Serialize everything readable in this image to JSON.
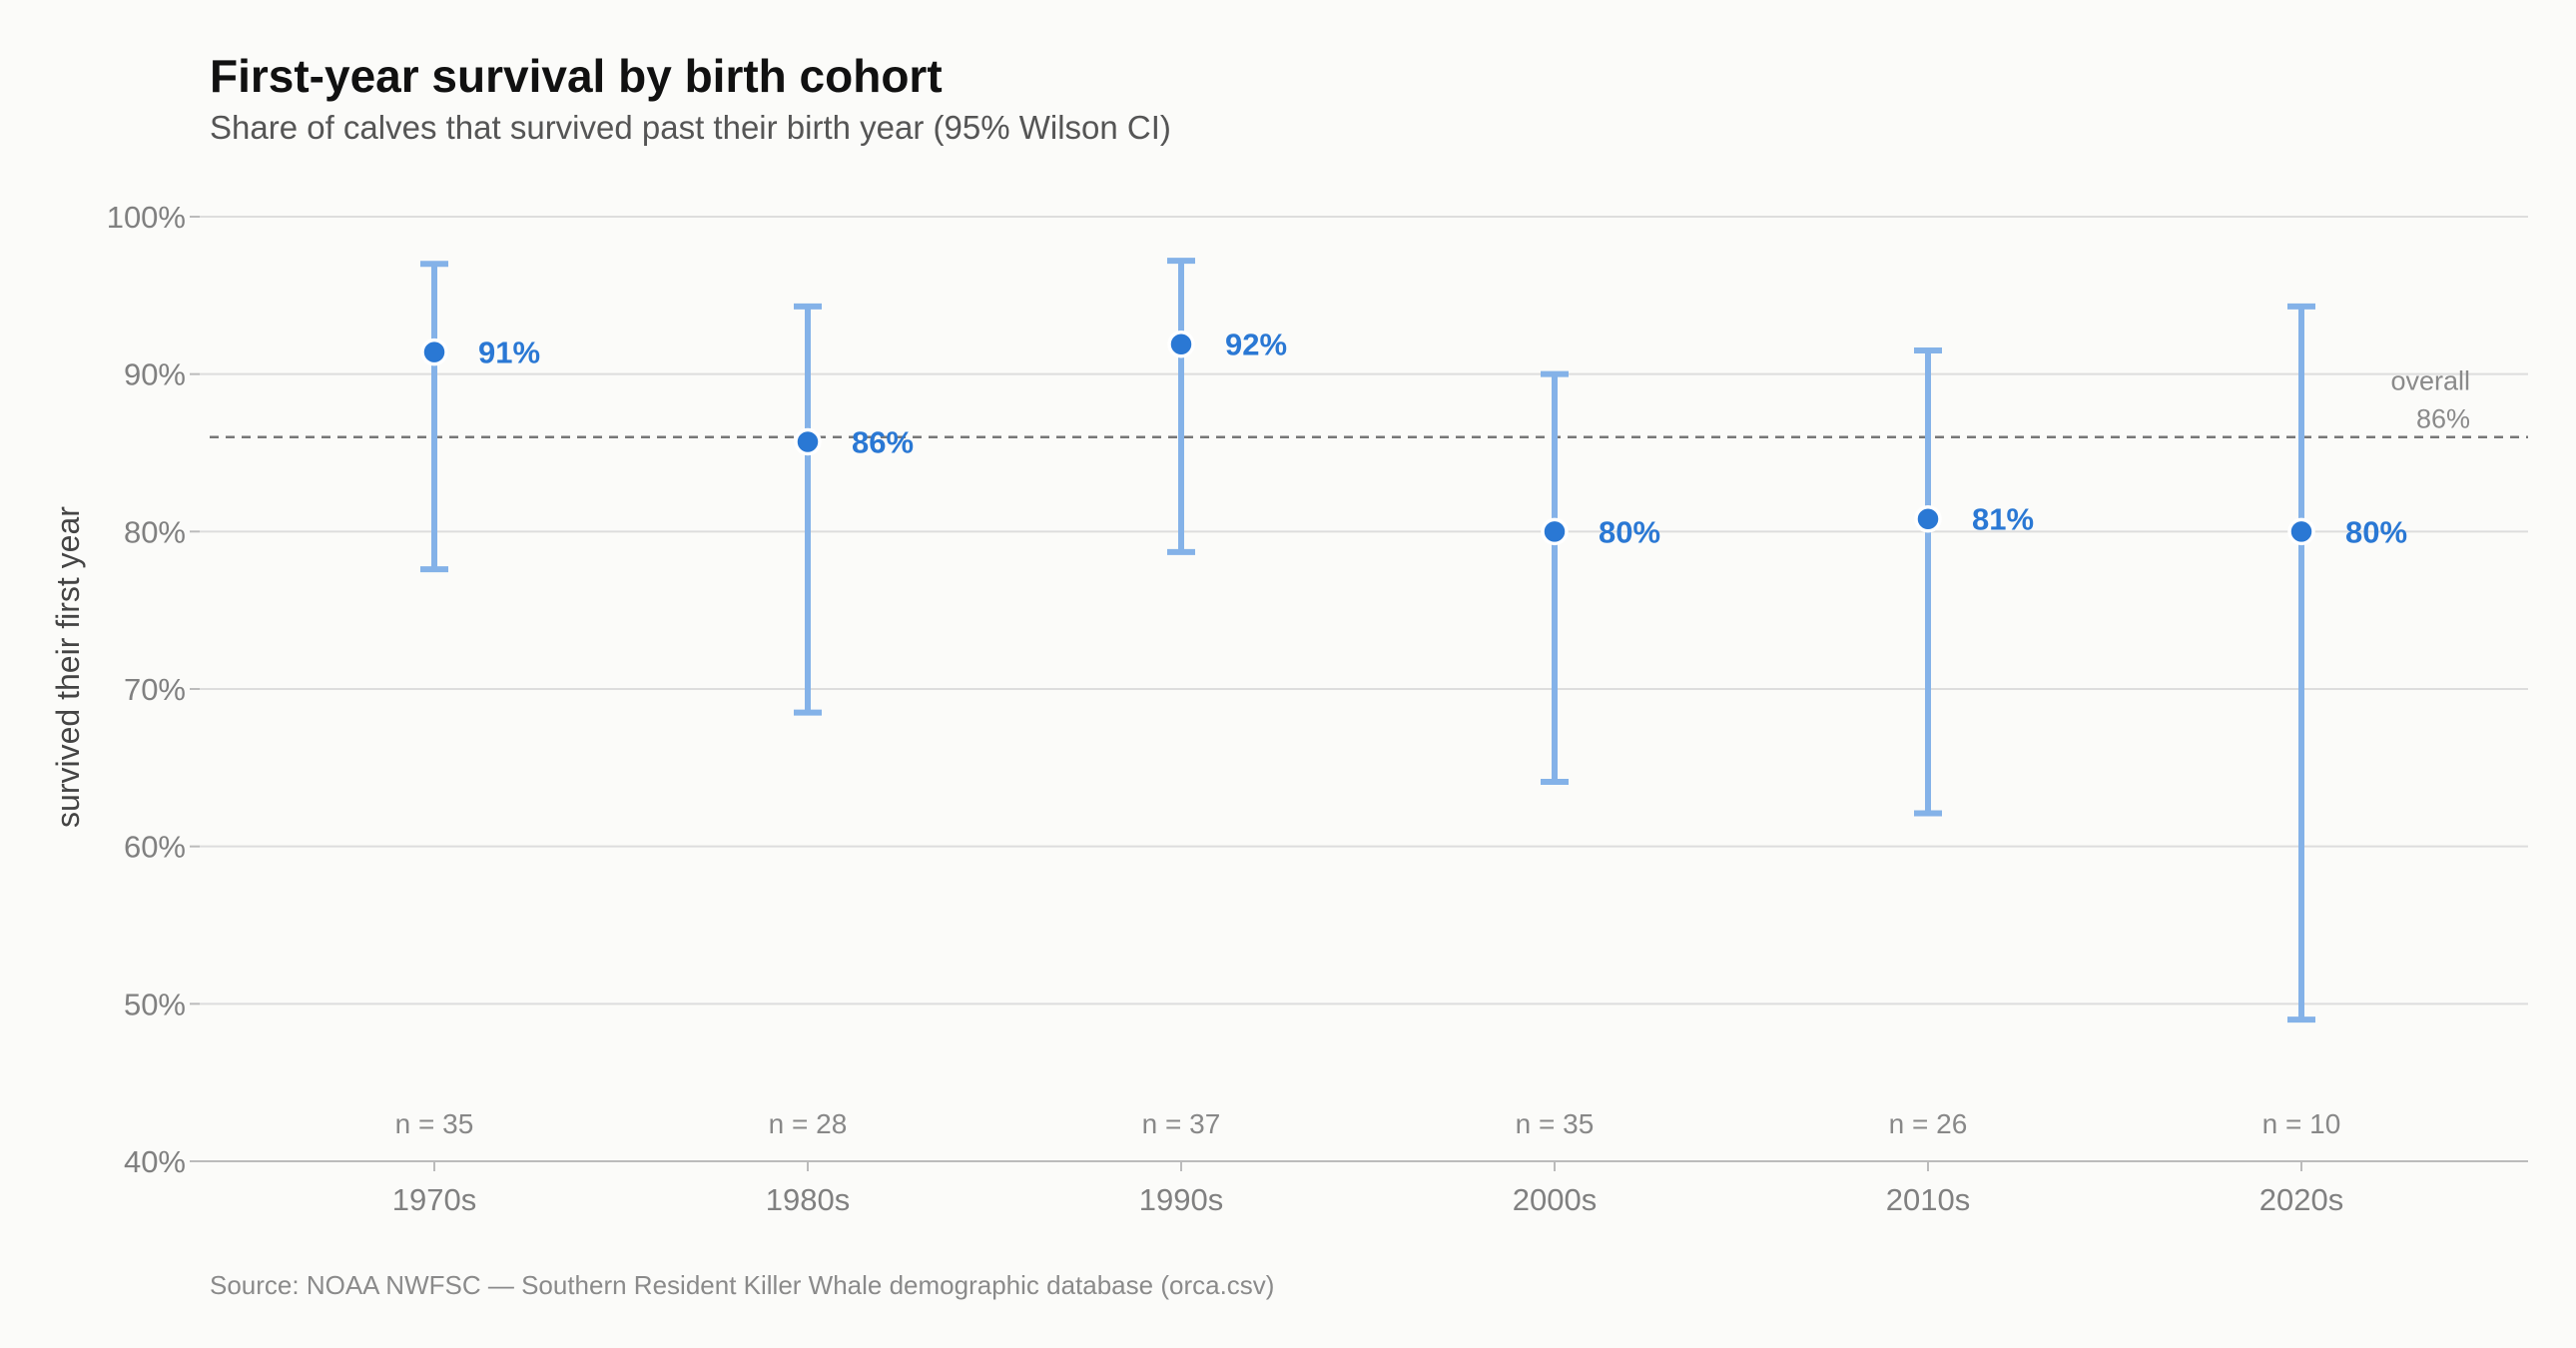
{
  "chart_data": {
    "type": "scatter",
    "title": "First-year survival by birth cohort",
    "subtitle": "Share of calves that survived past their birth year (95% Wilson CI)",
    "ylabel": "survived their first year",
    "xlabel": "",
    "ylim": [
      40,
      100
    ],
    "yticks": [
      "40%",
      "50%",
      "60%",
      "70%",
      "80%",
      "90%",
      "100%"
    ],
    "grid": "horizontal",
    "categories": [
      "1970s",
      "1980s",
      "1990s",
      "2000s",
      "2010s",
      "2020s"
    ],
    "series": [
      {
        "values": [
          91.4,
          85.7,
          91.9,
          80.0,
          80.8,
          80.0
        ],
        "ci_low": [
          77.6,
          68.5,
          78.7,
          64.1,
          62.1,
          49.0
        ],
        "ci_high": [
          97.0,
          94.3,
          97.2,
          90.0,
          91.5,
          94.3
        ],
        "value_labels": [
          "91%",
          "86%",
          "92%",
          "80%",
          "81%",
          "80%"
        ],
        "n_labels": [
          "n = 35",
          "n = 28",
          "n = 37",
          "n = 35",
          "n = 26",
          "n = 10"
        ]
      }
    ],
    "reference_line": {
      "value": 86,
      "label_line1": "overall",
      "label_line2": "86%"
    },
    "source": "Source: NOAA NWFSC — Southern Resident Killer Whale demographic database (orca.csv)",
    "colors": {
      "point": "#2a78d4",
      "errorbar": "#84b2e8",
      "grid": "#dddddd",
      "axis": "#bbbbbb",
      "reference": "#777777",
      "background": "#fbfbf9"
    }
  }
}
